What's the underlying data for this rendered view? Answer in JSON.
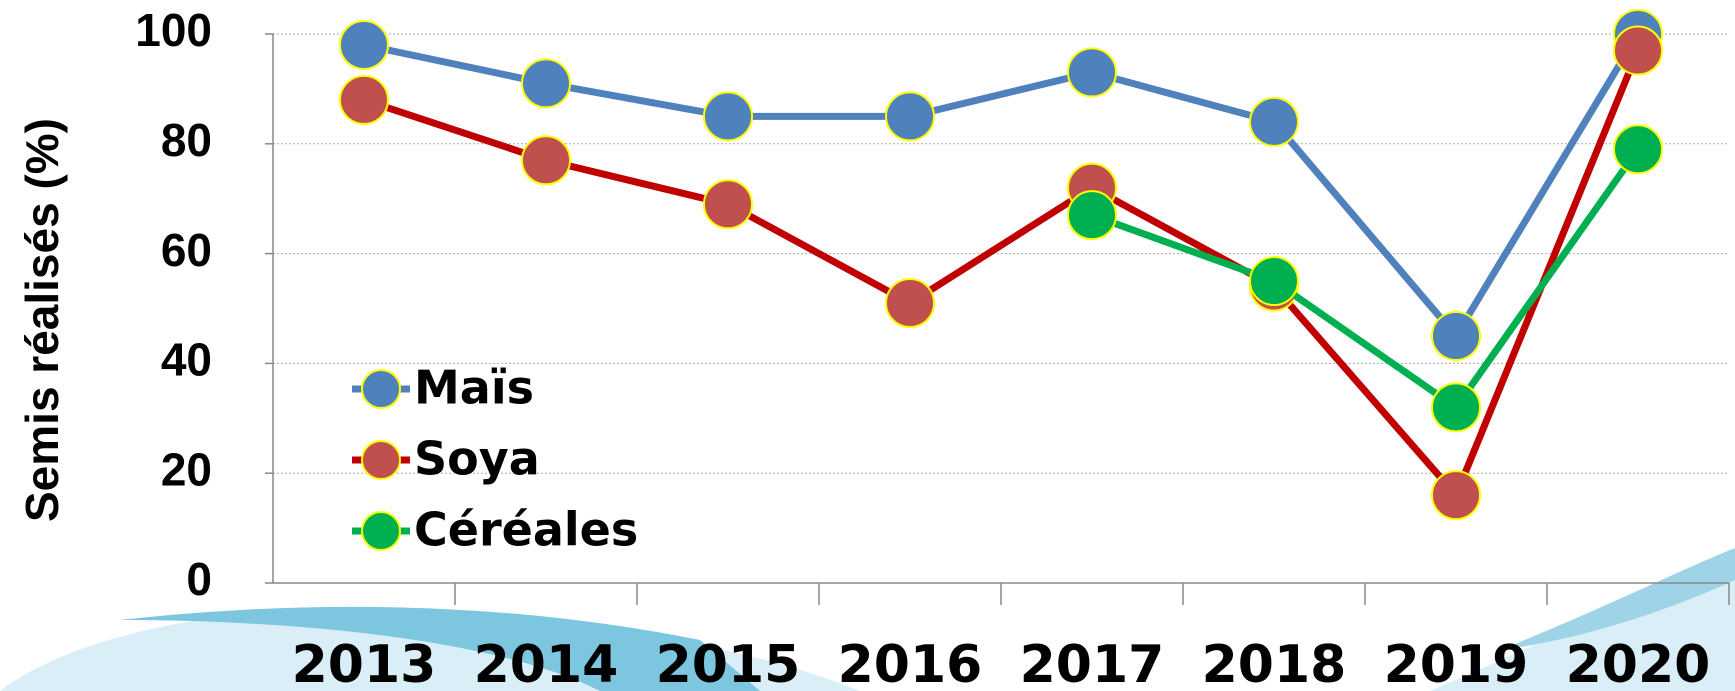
{
  "chart_data": {
    "type": "line",
    "y_label": "Semis réalisés (%)",
    "categories": [
      "2013",
      "2014",
      "2015",
      "2016",
      "2017",
      "2018",
      "2019",
      "2020"
    ],
    "series": [
      {
        "name": "Maïs",
        "color": "#4f81bd",
        "line_color": "#4f81bd",
        "values": [
          98,
          91,
          85,
          85,
          93,
          84,
          45,
          100
        ]
      },
      {
        "name": "Soya",
        "color": "#c0504d",
        "line_color": "#c00000",
        "values": [
          88,
          77,
          69,
          51,
          72,
          54,
          16,
          97
        ]
      },
      {
        "name": "Céréales",
        "color": "#00b050",
        "line_color": "#00b050",
        "values": [
          null,
          null,
          null,
          null,
          67,
          55,
          32,
          79
        ]
      }
    ],
    "ylim": [
      0,
      100
    ],
    "yticks": [
      0,
      20,
      40,
      60,
      80,
      100
    ],
    "grid": true,
    "legend": "left"
  }
}
